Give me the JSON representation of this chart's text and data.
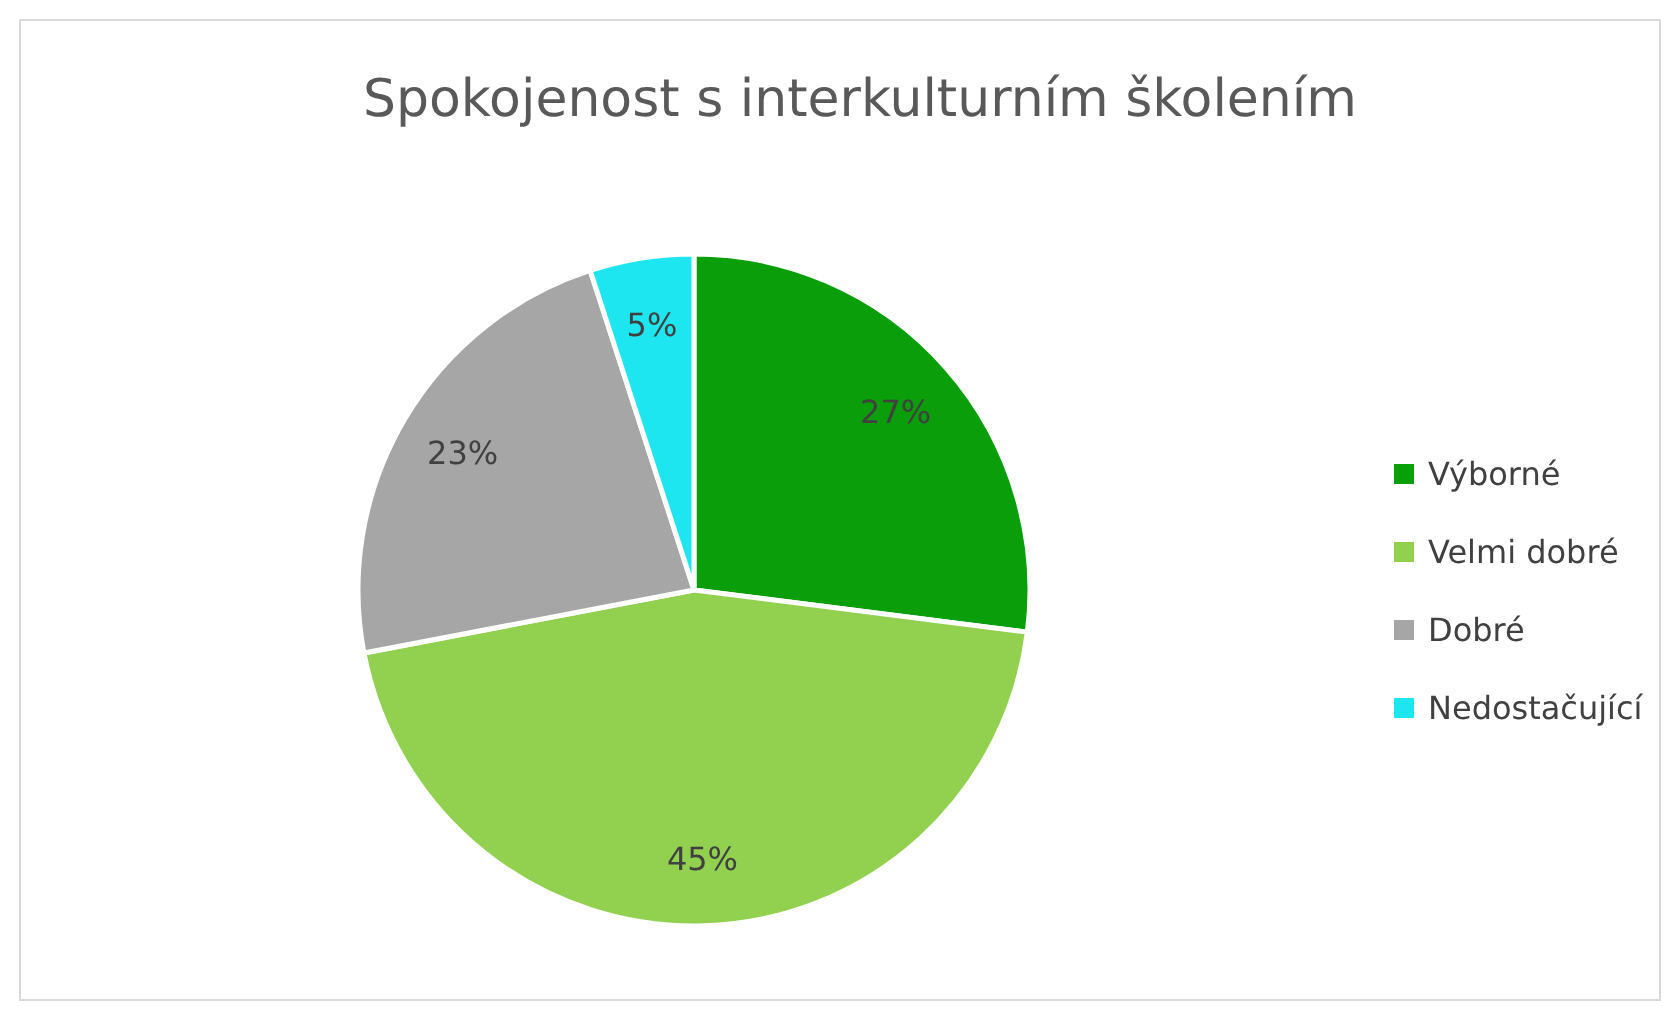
{
  "chart_data": {
    "type": "pie",
    "title": "Spokojenost s interkulturním školením",
    "categories": [
      "Výborné",
      "Velmi dobré",
      "Dobré",
      "Nedostačující"
    ],
    "values": [
      27,
      45,
      23,
      5
    ],
    "colors": [
      "#0a9e0a",
      "#92d050",
      "#a6a6a6",
      "#1ee6f0"
    ],
    "value_labels": [
      "27%",
      "45%",
      "23%",
      "5%"
    ],
    "legend": "right"
  }
}
